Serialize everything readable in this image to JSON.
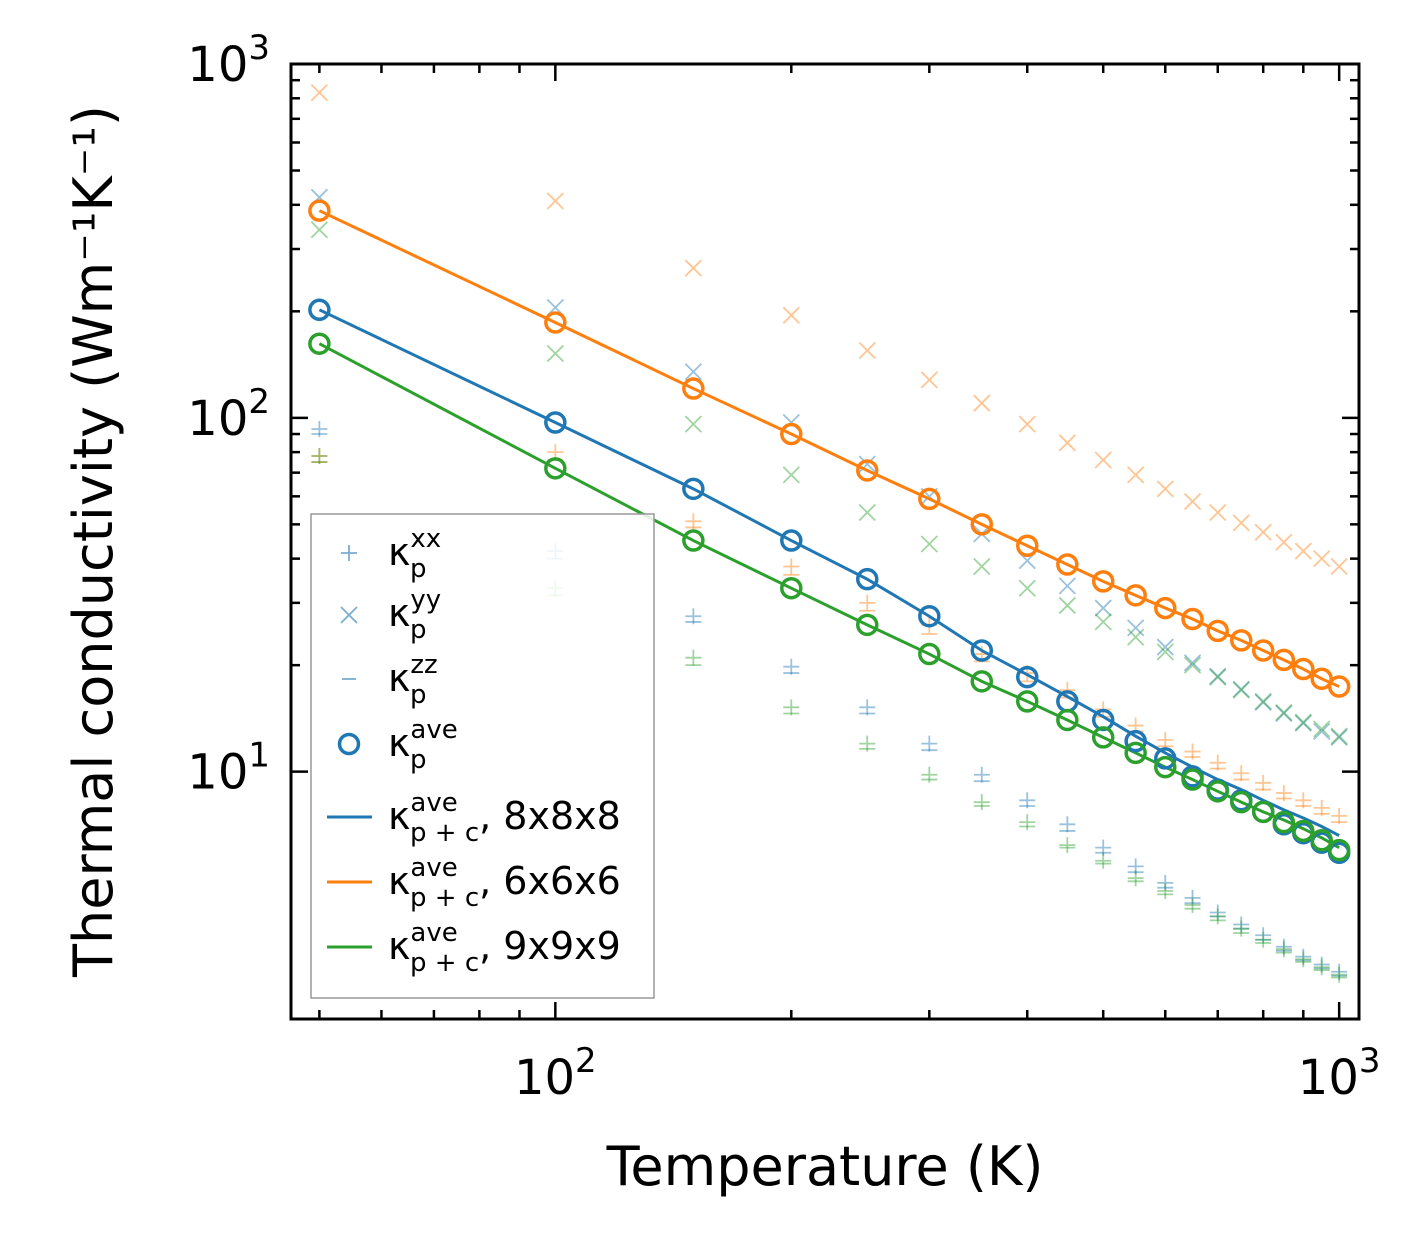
{
  "chart_data": {
    "type": "scatter",
    "title": "",
    "xlabel": "Temperature (K)",
    "ylabel": "Thermal conductivity (Wm⁻¹K⁻¹)",
    "xscale": "log",
    "yscale": "log",
    "xlim": [
      46,
      1060
    ],
    "ylim": [
      2.0,
      1000
    ],
    "legend_location": "lower-left",
    "x_tick_labels": [
      {
        "value": 100,
        "base": "10",
        "exp": "2"
      },
      {
        "value": 1000,
        "base": "10",
        "exp": "3"
      }
    ],
    "y_tick_labels": [
      {
        "value": 10,
        "base": "10",
        "exp": "1"
      },
      {
        "value": 100,
        "base": "10",
        "exp": "2"
      },
      {
        "value": 1000,
        "base": "10",
        "exp": "3"
      }
    ],
    "x": [
      50,
      100,
      150,
      200,
      250,
      300,
      350,
      400,
      450,
      500,
      550,
      600,
      650,
      700,
      750,
      800,
      850,
      900,
      950,
      1000
    ],
    "colors": {
      "blue": "#1f77b4",
      "orange": "#ff7f0e",
      "green": "#2ca02c"
    },
    "groups": [
      {
        "name": "8x8x8",
        "color": "#1f77b4",
        "kxx": [
          93,
          42,
          27.5,
          19.8,
          15.2,
          12.0,
          9.8,
          8.3,
          7.1,
          6.1,
          5.4,
          4.85,
          4.4,
          4.0,
          3.7,
          3.45,
          3.2,
          3.0,
          2.85,
          2.72
        ],
        "kyy": [
          420,
          205,
          135,
          97,
          74,
          60,
          47,
          39.5,
          33.5,
          29,
          25.5,
          22.5,
          20.3,
          18.6,
          17.1,
          15.7,
          14.6,
          13.7,
          13.0,
          12.5
        ],
        "kzz": [
          90,
          40,
          26.5,
          19.0,
          14.6,
          11.5,
          9.4,
          8.0,
          6.8,
          5.9,
          5.2,
          4.7,
          4.25,
          3.9,
          3.6,
          3.35,
          3.12,
          2.93,
          2.78,
          2.65
        ],
        "kave": [
          202,
          97,
          63,
          45,
          35,
          27.5,
          22,
          18.5,
          15.8,
          14,
          12.2,
          10.9,
          9.7,
          8.9,
          8.3,
          7.7,
          7.1,
          6.7,
          6.3,
          5.9
        ],
        "kpc": [
          202,
          97,
          63,
          45,
          35,
          27.5,
          22,
          18.8,
          16.3,
          14.3,
          12.6,
          11.3,
          10.3,
          9.5,
          8.9,
          8.3,
          7.8,
          7.4,
          7.0,
          6.6
        ]
      },
      {
        "name": "6x6x6",
        "color": "#ff7f0e",
        "kxx": [
          78,
          80,
          51,
          38,
          30,
          26,
          21.5,
          19,
          17,
          15,
          13.5,
          12.3,
          11.4,
          10.6,
          9.9,
          9.3,
          8.7,
          8.3,
          7.9,
          7.5
        ],
        "kyy": [
          830,
          410,
          265,
          195,
          155,
          128,
          110,
          96,
          85,
          76,
          69,
          63,
          58,
          54,
          50.5,
          47.5,
          44.5,
          42,
          40,
          38
        ],
        "kzz": [
          75,
          76,
          49,
          36,
          28.5,
          24.5,
          20.5,
          18,
          16.2,
          14.3,
          13,
          11.8,
          11,
          10.2,
          9.5,
          8.9,
          8.4,
          8.0,
          7.6,
          7.2
        ],
        "kave": [
          385,
          186,
          121,
          90,
          71,
          59,
          50,
          43.5,
          38.5,
          34.5,
          31.5,
          29,
          27,
          25,
          23.5,
          22,
          20.7,
          19.5,
          18.3,
          17.4
        ],
        "kpc": [
          385,
          186,
          121,
          90,
          71,
          59,
          50,
          43.5,
          38.5,
          34.5,
          31.5,
          29,
          27,
          25,
          23.5,
          22,
          20.7,
          19.5,
          18.3,
          17.4
        ]
      },
      {
        "name": "9x9x9",
        "color": "#2ca02c",
        "kxx": [
          78,
          33,
          21,
          15.2,
          12.0,
          9.8,
          8.2,
          7.2,
          6.2,
          5.6,
          5.0,
          4.6,
          4.2,
          3.9,
          3.6,
          3.35,
          3.15,
          2.95,
          2.8,
          2.67
        ],
        "kyy": [
          340,
          152,
          96,
          69,
          54,
          44,
          38,
          33,
          29.5,
          26.5,
          24,
          21.8,
          20,
          18.5,
          17,
          15.8,
          14.7,
          13.8,
          13.2,
          12.6
        ],
        "kzz": [
          75,
          31.5,
          20,
          14.6,
          11.6,
          9.5,
          8.0,
          7.0,
          6.1,
          5.5,
          4.9,
          4.5,
          4.1,
          3.8,
          3.5,
          3.28,
          3.08,
          2.9,
          2.75,
          2.62
        ],
        "kave": [
          162,
          72,
          45,
          33,
          26,
          21.5,
          18,
          15.8,
          14,
          12.5,
          11.3,
          10.3,
          9.5,
          8.8,
          8.2,
          7.7,
          7.2,
          6.8,
          6.4,
          6.0
        ],
        "kpc": [
          162,
          72,
          45,
          33,
          26,
          21.5,
          18,
          15.8,
          14,
          12.5,
          11.3,
          10.3,
          9.5,
          8.8,
          8.2,
          7.7,
          7.3,
          6.9,
          6.5,
          6.1
        ]
      }
    ],
    "legend": [
      {
        "marker": "plus",
        "color": "#1f77b4",
        "sym": "κ",
        "sub": "p",
        "sup": "xx",
        "suffix": ""
      },
      {
        "marker": "x",
        "color": "#1f77b4",
        "sym": "κ",
        "sub": "p",
        "sup": "yy",
        "suffix": ""
      },
      {
        "marker": "dash",
        "color": "#1f77b4",
        "sym": "κ",
        "sub": "p",
        "sup": "zz",
        "suffix": ""
      },
      {
        "marker": "circle",
        "color": "#1f77b4",
        "sym": "κ",
        "sub": "p",
        "sup": "ave",
        "suffix": ""
      },
      {
        "marker": "line",
        "color": "#1f77b4",
        "sym": "κ",
        "sub": "p + c",
        "sup": "ave",
        "suffix": ", 8x8x8"
      },
      {
        "marker": "line",
        "color": "#ff7f0e",
        "sym": "κ",
        "sub": "p + c",
        "sup": "ave",
        "suffix": ", 6x6x6"
      },
      {
        "marker": "line",
        "color": "#2ca02c",
        "sym": "κ",
        "sub": "p + c",
        "sup": "ave",
        "suffix": ", 9x9x9"
      }
    ]
  }
}
